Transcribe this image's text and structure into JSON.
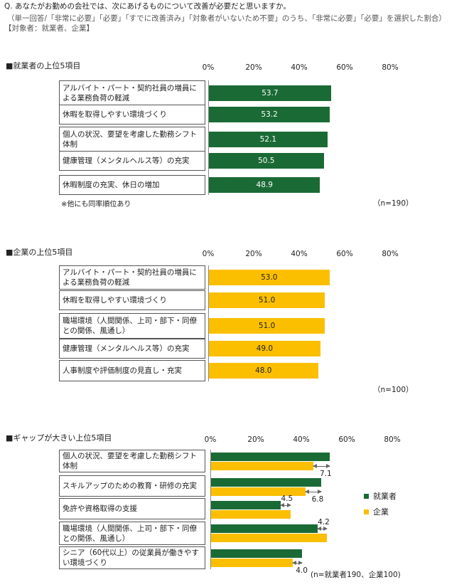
{
  "header": {
    "question": "Q. あなたがお勤めの会社では、次にあげるものについて改善が必要だと思いますか。",
    "sub1": "（単一回答/「非常に必要」「必要」「すでに改善済み」「対象者がいないため不要」のうち、「非常に必要」「必要」を選択した割合）",
    "sub2": "【対象者：就業者、企業】"
  },
  "ticks": [
    "0%",
    "20%",
    "40%",
    "60%",
    "80%"
  ],
  "colors": {
    "worker": "#1a6a35",
    "company": "#fbbf00"
  },
  "chart_data": [
    {
      "type": "bar",
      "title": "■就業者の上位5項目",
      "categories": [
        "アルバイト・パート・契約社員の増員による業務負荷の軽減",
        "休暇を取得しやすい環境づくり",
        "個人の状況、要望を考慮した勤務シフト体制",
        "健康管理（メンタルヘルス等）の充実",
        "休暇制度の充実、休日の増加"
      ],
      "values": [
        53.7,
        53.2,
        52.1,
        50.5,
        48.9
      ],
      "labels": [
        "53.7",
        "53.2",
        "52.1",
        "50.5",
        "48.9"
      ],
      "xlim": [
        0,
        80
      ],
      "note": "※他にも同率順位あり",
      "n": "（n=190）"
    },
    {
      "type": "bar",
      "title": "■企業の上位5項目",
      "categories": [
        "アルバイト・パート・契約社員の増員による業務負荷の軽減",
        "休暇を取得しやすい環境づくり",
        "職場環境（人間関係、上司・部下・同僚との関係、風通し）",
        "健康管理（メンタルヘルス等）の充実",
        "人事制度や評価制度の見直し・充実"
      ],
      "values": [
        53.0,
        51.0,
        51.0,
        49.0,
        48.0
      ],
      "labels": [
        "53.0",
        "51.0",
        "51.0",
        "49.0",
        "48.0"
      ],
      "xlim": [
        0,
        80
      ],
      "n": "（n=100）"
    },
    {
      "type": "bar",
      "title": "■ギャップが大きい上位5項目",
      "categories": [
        "個人の状況、要望を考慮した勤務シフト体制",
        "スキルアップのための教育・研修の充実",
        "免許や資格取得の支援",
        "職場環境（人間関係、上司・部下・同僚との関係、風通し）",
        "シニア（60代以上）の従業員が働きやすい環境づくり"
      ],
      "series": [
        {
          "name": "就業者",
          "values": [
            52.1,
            48.4,
            30.5,
            46.8,
            40.0
          ]
        },
        {
          "name": "企業",
          "values": [
            45.0,
            41.6,
            35.0,
            51.0,
            36.0
          ]
        }
      ],
      "gaps": [
        "7.1",
        "6.8",
        "4.5",
        "4.2",
        "4.0"
      ],
      "xlim": [
        0,
        80
      ],
      "n": "(n=就業者190、企業100)"
    }
  ]
}
